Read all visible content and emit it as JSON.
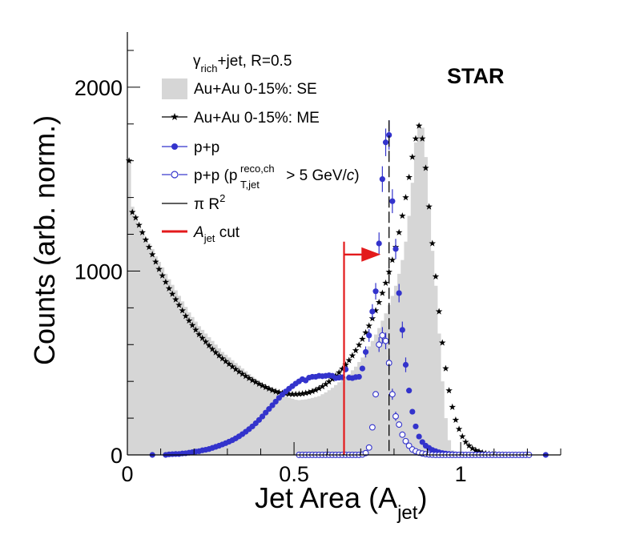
{
  "chart_data": {
    "type": "histogram-with-scatter",
    "experiment_label": "STAR",
    "xlabel": "Jet Area (A",
    "xlabel_sub": "jet",
    "xlabel_close": ")",
    "ylabel": "Counts (arb. norm.)",
    "xlim": [
      0,
      1.3
    ],
    "ylim": [
      0,
      2300
    ],
    "x_ticks": [
      {
        "value": 0,
        "label": "0"
      },
      {
        "value": 0.5,
        "label": "0.5"
      },
      {
        "value": 1,
        "label": "1"
      }
    ],
    "y_ticks": [
      {
        "value": 0,
        "label": "0"
      },
      {
        "value": 1000,
        "label": "1000"
      },
      {
        "value": 2000,
        "label": "2000"
      }
    ],
    "legend": {
      "header": "γ",
      "header_sub": "rich",
      "header_rest": "+jet, R=0.5",
      "entries": [
        {
          "key": "se",
          "text": "Au+Au 0-15%: SE"
        },
        {
          "key": "me",
          "text": "Au+Au 0-15%: ME"
        },
        {
          "key": "pp",
          "text": "p+p"
        },
        {
          "key": "pp_cut",
          "text_prefix": "p+p (p",
          "text_sup": "reco,ch",
          "text_sub": "T,jet",
          "text_suffix": " > 5 GeV/",
          "text_italic": "c",
          "text_close": ")"
        },
        {
          "key": "pir2",
          "text_prefix": "π R",
          "text_sup": "2"
        },
        {
          "key": "acut",
          "text_italic": "A",
          "text_sub": "jet",
          "text_suffix": " cut"
        }
      ]
    },
    "colors": {
      "se_fill": "#d6d6d6",
      "me": "#000000",
      "pp": "#3333cc",
      "pp_cut": "#3333cc",
      "acut": "#e31a1c",
      "pir2": "#000000"
    },
    "pi_r2": 0.785,
    "acut_value": 0.65,
    "acut_arrow_to": 0.76,
    "acut_arrow_y": 1090,
    "acut_line_top": 1160,
    "se_histogram": {
      "x_start": 0,
      "bin_width": 0.01,
      "values": [
        1600,
        1350,
        1280,
        1240,
        1210,
        1180,
        1150,
        1120,
        1080,
        1050,
        1020,
        985,
        955,
        925,
        895,
        865,
        835,
        805,
        775,
        750,
        725,
        700,
        680,
        660,
        640,
        620,
        600,
        580,
        560,
        545,
        530,
        515,
        500,
        485,
        470,
        455,
        440,
        425,
        410,
        395,
        385,
        375,
        365,
        355,
        345,
        335,
        325,
        318,
        312,
        306,
        300,
        298,
        300,
        302,
        306,
        310,
        315,
        320,
        330,
        340,
        352,
        365,
        380,
        395,
        410,
        425,
        440,
        460,
        480,
        505,
        530,
        560,
        590,
        620,
        655,
        690,
        730,
        770,
        815,
        865,
        920,
        985,
        1060,
        1160,
        1300,
        1480,
        1700,
        1800,
        1780,
        1620,
        1350,
        1110,
        920,
        660,
        400,
        200,
        80,
        25,
        8,
        4,
        2,
        1,
        0,
        0,
        0,
        0,
        0,
        0,
        0,
        0,
        0,
        0,
        0,
        0,
        0,
        0,
        0,
        0,
        0,
        0,
        0
      ]
    },
    "me_series": {
      "x_start": 0.005,
      "step": 0.01,
      "values": [
        1600,
        1320,
        1290,
        1250,
        1210,
        1170,
        1130,
        1090,
        1050,
        1010,
        975,
        940,
        905,
        875,
        845,
        815,
        785,
        755,
        730,
        705,
        680,
        655,
        635,
        615,
        595,
        575,
        557,
        540,
        524,
        509,
        494,
        480,
        466,
        452,
        440,
        428,
        417,
        406,
        396,
        386,
        377,
        368,
        360,
        352,
        345,
        340,
        336,
        333,
        331,
        330,
        330,
        331,
        333,
        336,
        340,
        346,
        353,
        362,
        372,
        384,
        398,
        413,
        430,
        448,
        468,
        490,
        514,
        540,
        568,
        598,
        630,
        665,
        702,
        742,
        785,
        830,
        880,
        935,
        995,
        1060,
        1130,
        1210,
        1300,
        1400,
        1510,
        1620,
        1720,
        1790,
        1720,
        1560,
        1350,
        1150,
        970,
        780,
        610,
        470,
        350,
        260,
        190,
        140,
        100,
        70,
        50,
        35,
        25,
        18,
        12,
        8,
        5,
        3,
        2,
        1,
        0
      ]
    },
    "pp_series": {
      "points": [
        [
          0.075,
          0
        ],
        [
          0.115,
          0
        ],
        [
          0.125,
          3
        ],
        [
          0.135,
          4
        ],
        [
          0.145,
          5
        ],
        [
          0.155,
          5
        ],
        [
          0.165,
          8
        ],
        [
          0.175,
          9
        ],
        [
          0.185,
          12
        ],
        [
          0.195,
          15
        ],
        [
          0.205,
          18
        ],
        [
          0.215,
          20
        ],
        [
          0.225,
          25
        ],
        [
          0.235,
          28
        ],
        [
          0.245,
          32
        ],
        [
          0.255,
          38
        ],
        [
          0.265,
          44
        ],
        [
          0.275,
          50
        ],
        [
          0.285,
          57
        ],
        [
          0.295,
          64
        ],
        [
          0.305,
          72
        ],
        [
          0.315,
          80
        ],
        [
          0.325,
          90
        ],
        [
          0.335,
          101
        ],
        [
          0.345,
          113
        ],
        [
          0.355,
          126
        ],
        [
          0.365,
          140
        ],
        [
          0.375,
          155
        ],
        [
          0.385,
          172
        ],
        [
          0.395,
          190
        ],
        [
          0.405,
          209
        ],
        [
          0.415,
          230
        ],
        [
          0.425,
          250
        ],
        [
          0.435,
          270
        ],
        [
          0.445,
          290
        ],
        [
          0.455,
          310
        ],
        [
          0.465,
          328
        ],
        [
          0.475,
          345
        ],
        [
          0.485,
          360
        ],
        [
          0.495,
          374
        ],
        [
          0.505,
          388
        ],
        [
          0.515,
          400
        ],
        [
          0.525,
          412
        ],
        [
          0.535,
          405
        ],
        [
          0.545,
          420
        ],
        [
          0.555,
          425
        ],
        [
          0.565,
          425
        ],
        [
          0.575,
          430
        ],
        [
          0.585,
          428
        ],
        [
          0.595,
          430
        ],
        [
          0.605,
          433
        ],
        [
          0.615,
          430
        ],
        [
          0.625,
          418
        ],
        [
          0.635,
          420
        ],
        [
          0.645,
          422
        ],
        [
          0.655,
          465
        ],
        [
          0.665,
          420
        ],
        [
          0.675,
          418
        ],
        [
          0.685,
          423
        ],
        [
          0.695,
          425
        ],
        [
          0.705,
          470
        ],
        [
          0.715,
          560
        ],
        [
          0.725,
          650
        ],
        [
          0.735,
          780
        ],
        [
          0.745,
          890
        ],
        [
          0.755,
          1150
        ],
        [
          0.765,
          1500
        ],
        [
          0.775,
          1700
        ],
        [
          0.785,
          1740
        ],
        [
          0.795,
          1380
        ],
        [
          0.805,
          1120
        ],
        [
          0.815,
          880
        ],
        [
          0.825,
          680
        ],
        [
          0.835,
          490
        ],
        [
          0.845,
          350
        ],
        [
          0.855,
          235
        ],
        [
          0.865,
          155
        ],
        [
          0.875,
          100
        ],
        [
          0.885,
          70
        ],
        [
          0.895,
          50
        ],
        [
          0.905,
          38
        ],
        [
          0.915,
          27
        ],
        [
          0.925,
          20
        ],
        [
          0.935,
          14
        ],
        [
          0.945,
          10
        ],
        [
          0.955,
          7
        ],
        [
          0.965,
          5
        ],
        [
          0.975,
          4
        ],
        [
          0.985,
          3
        ],
        [
          0.995,
          2
        ],
        [
          1.005,
          2
        ],
        [
          1.015,
          1
        ],
        [
          1.045,
          1
        ],
        [
          1.075,
          0
        ],
        [
          1.105,
          0
        ],
        [
          1.185,
          0
        ],
        [
          1.255,
          0
        ]
      ],
      "error_bars": [
        [
          0.755,
          60
        ],
        [
          0.765,
          70
        ],
        [
          0.775,
          75
        ],
        [
          0.785,
          80
        ],
        [
          0.795,
          65
        ],
        [
          0.805,
          55
        ],
        [
          0.815,
          50
        ],
        [
          0.825,
          45
        ],
        [
          0.835,
          40
        ],
        [
          0.735,
          40
        ],
        [
          0.745,
          45
        ],
        [
          0.725,
          35
        ],
        [
          0.715,
          30
        ]
      ]
    },
    "pp_cut_series": {
      "points": [
        [
          0.645,
          0
        ],
        [
          0.655,
          0
        ],
        [
          0.665,
          0
        ],
        [
          0.675,
          0
        ],
        [
          0.685,
          0
        ],
        [
          0.695,
          0
        ],
        [
          0.705,
          2
        ],
        [
          0.715,
          10
        ],
        [
          0.725,
          40
        ],
        [
          0.735,
          150
        ],
        [
          0.745,
          330
        ],
        [
          0.755,
          600
        ],
        [
          0.765,
          650
        ],
        [
          0.775,
          620
        ],
        [
          0.785,
          500
        ],
        [
          0.795,
          330
        ],
        [
          0.805,
          210
        ],
        [
          0.815,
          165
        ],
        [
          0.825,
          110
        ],
        [
          0.835,
          75
        ],
        [
          0.845,
          50
        ],
        [
          0.855,
          30
        ],
        [
          0.865,
          20
        ],
        [
          0.875,
          12
        ],
        [
          0.885,
          8
        ],
        [
          0.895,
          4
        ],
        [
          0.905,
          2
        ],
        [
          0.915,
          1
        ],
        [
          0.925,
          0
        ],
        [
          0.935,
          0
        ],
        [
          0.945,
          0
        ],
        [
          0.955,
          0
        ],
        [
          0.965,
          0
        ],
        [
          0.975,
          0
        ],
        [
          0.985,
          0
        ],
        [
          0.995,
          0
        ],
        [
          1.005,
          0
        ],
        [
          1.015,
          0
        ],
        [
          1.025,
          0
        ],
        [
          1.035,
          0
        ],
        [
          1.045,
          0
        ],
        [
          1.055,
          0
        ],
        [
          1.065,
          0
        ],
        [
          1.075,
          0
        ],
        [
          1.085,
          0
        ],
        [
          1.095,
          0
        ],
        [
          1.105,
          0
        ],
        [
          1.115,
          0
        ],
        [
          1.125,
          0
        ],
        [
          1.135,
          0
        ],
        [
          1.145,
          0
        ],
        [
          1.155,
          0
        ],
        [
          1.165,
          0
        ],
        [
          1.175,
          0
        ],
        [
          1.185,
          0
        ],
        [
          1.195,
          0
        ],
        [
          1.205,
          0
        ]
      ],
      "extra_left": [
        [
          0.515,
          0
        ],
        [
          0.525,
          0
        ],
        [
          0.535,
          0
        ],
        [
          0.545,
          0
        ],
        [
          0.555,
          0
        ],
        [
          0.565,
          0
        ],
        [
          0.575,
          0
        ],
        [
          0.585,
          0
        ],
        [
          0.595,
          0
        ],
        [
          0.605,
          0
        ],
        [
          0.615,
          0
        ],
        [
          0.625,
          0
        ],
        [
          0.635,
          0
        ]
      ],
      "error_bars": [
        [
          0.755,
          40
        ],
        [
          0.765,
          45
        ],
        [
          0.775,
          45
        ],
        [
          0.785,
          40
        ],
        [
          0.795,
          30
        ],
        [
          0.805,
          25
        ]
      ]
    }
  }
}
